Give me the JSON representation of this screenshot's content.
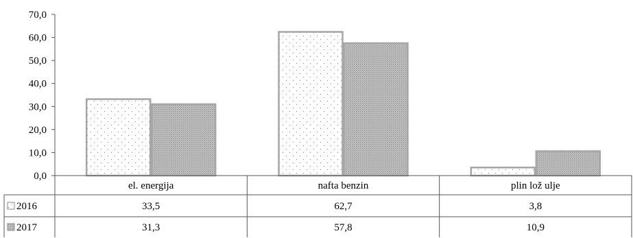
{
  "chart_data": {
    "type": "bar",
    "categories": [
      "el. energija",
      "nafta benzin",
      "plin lož ulje"
    ],
    "series": [
      {
        "name": "2016",
        "values": [
          33.5,
          62.7,
          3.8
        ],
        "value_labels": [
          "33,5",
          "62,7",
          "3,8"
        ],
        "pattern": "dots-white",
        "color": "#a6a6a6"
      },
      {
        "name": "2017",
        "values": [
          31.3,
          57.8,
          10.9
        ],
        "value_labels": [
          "31,3",
          "57,8",
          "10,9"
        ],
        "pattern": "dense-grey",
        "color": "#a6a6a6"
      }
    ],
    "yticks": [
      "0,0",
      "10,0",
      "20,0",
      "30,0",
      "40,0",
      "50,0",
      "60,0",
      "70,0"
    ],
    "ylim": [
      0,
      70
    ],
    "title": "",
    "xlabel": "",
    "ylabel": "",
    "legend": "data-table",
    "grid": false
  }
}
